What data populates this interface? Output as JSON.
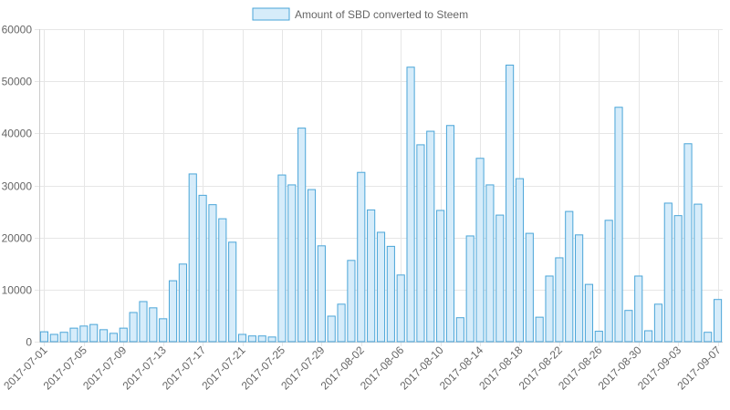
{
  "chart_data": {
    "type": "bar",
    "title": "",
    "xlabel": "",
    "ylabel": "",
    "ylim": [
      0,
      60000
    ],
    "yticks": [
      0,
      10000,
      20000,
      30000,
      40000,
      50000,
      60000
    ],
    "grid": true,
    "legend_position": "top-center",
    "colors": {
      "bar_fill": "#d6ecfa",
      "bar_stroke": "#4aa5d8",
      "grid": "#e6e6e6",
      "axis": "#cccccc"
    },
    "categories": [
      "2017-07-01",
      "2017-07-02",
      "2017-07-03",
      "2017-07-04",
      "2017-07-05",
      "2017-07-06",
      "2017-07-07",
      "2017-07-08",
      "2017-07-09",
      "2017-07-10",
      "2017-07-11",
      "2017-07-12",
      "2017-07-13",
      "2017-07-14",
      "2017-07-15",
      "2017-07-16",
      "2017-07-17",
      "2017-07-18",
      "2017-07-19",
      "2017-07-20",
      "2017-07-21",
      "2017-07-22",
      "2017-07-23",
      "2017-07-24",
      "2017-07-25",
      "2017-07-26",
      "2017-07-27",
      "2017-07-28",
      "2017-07-29",
      "2017-07-30",
      "2017-07-31",
      "2017-08-01",
      "2017-08-02",
      "2017-08-03",
      "2017-08-04",
      "2017-08-05",
      "2017-08-06",
      "2017-08-07",
      "2017-08-08",
      "2017-08-09",
      "2017-08-10",
      "2017-08-11",
      "2017-08-12",
      "2017-08-13",
      "2017-08-14",
      "2017-08-15",
      "2017-08-16",
      "2017-08-17",
      "2017-08-18",
      "2017-08-19",
      "2017-08-20",
      "2017-08-21",
      "2017-08-22",
      "2017-08-23",
      "2017-08-24",
      "2017-08-25",
      "2017-08-26",
      "2017-08-27",
      "2017-08-28",
      "2017-08-29",
      "2017-08-30",
      "2017-08-31",
      "2017-09-01",
      "2017-09-02",
      "2017-09-03",
      "2017-09-04",
      "2017-09-05",
      "2017-09-06",
      "2017-09-07"
    ],
    "tick_labels": [
      "2017-07-01",
      "2017-07-05",
      "2017-07-09",
      "2017-07-13",
      "2017-07-17",
      "2017-07-21",
      "2017-07-25",
      "2017-07-29",
      "2017-08-02",
      "2017-08-06",
      "2017-08-10",
      "2017-08-14",
      "2017-08-18",
      "2017-08-22",
      "2017-08-26",
      "2017-08-30",
      "2017-09-03",
      "2017-09-07"
    ],
    "series": [
      {
        "name": "Amount of SBD converted to Steem",
        "values": [
          1900,
          1400,
          1800,
          2600,
          3000,
          3300,
          2300,
          1600,
          2600,
          5600,
          7700,
          6500,
          4400,
          11700,
          14900,
          32200,
          28100,
          26300,
          23600,
          19100,
          1400,
          1100,
          1100,
          900,
          32000,
          30100,
          41000,
          29200,
          18400,
          4900,
          7200,
          15600,
          32500,
          25300,
          21000,
          18300,
          12800,
          52700,
          37800,
          40400,
          25200,
          41500,
          4600,
          20300,
          35200,
          30100,
          24300,
          53100,
          31300,
          20800,
          4700,
          12600,
          16100,
          25000,
          20500,
          11000,
          2000,
          23300,
          45000,
          6000,
          12600,
          2100,
          7200,
          26600,
          24200,
          38000,
          26400,
          1800,
          8100
        ]
      }
    ]
  }
}
